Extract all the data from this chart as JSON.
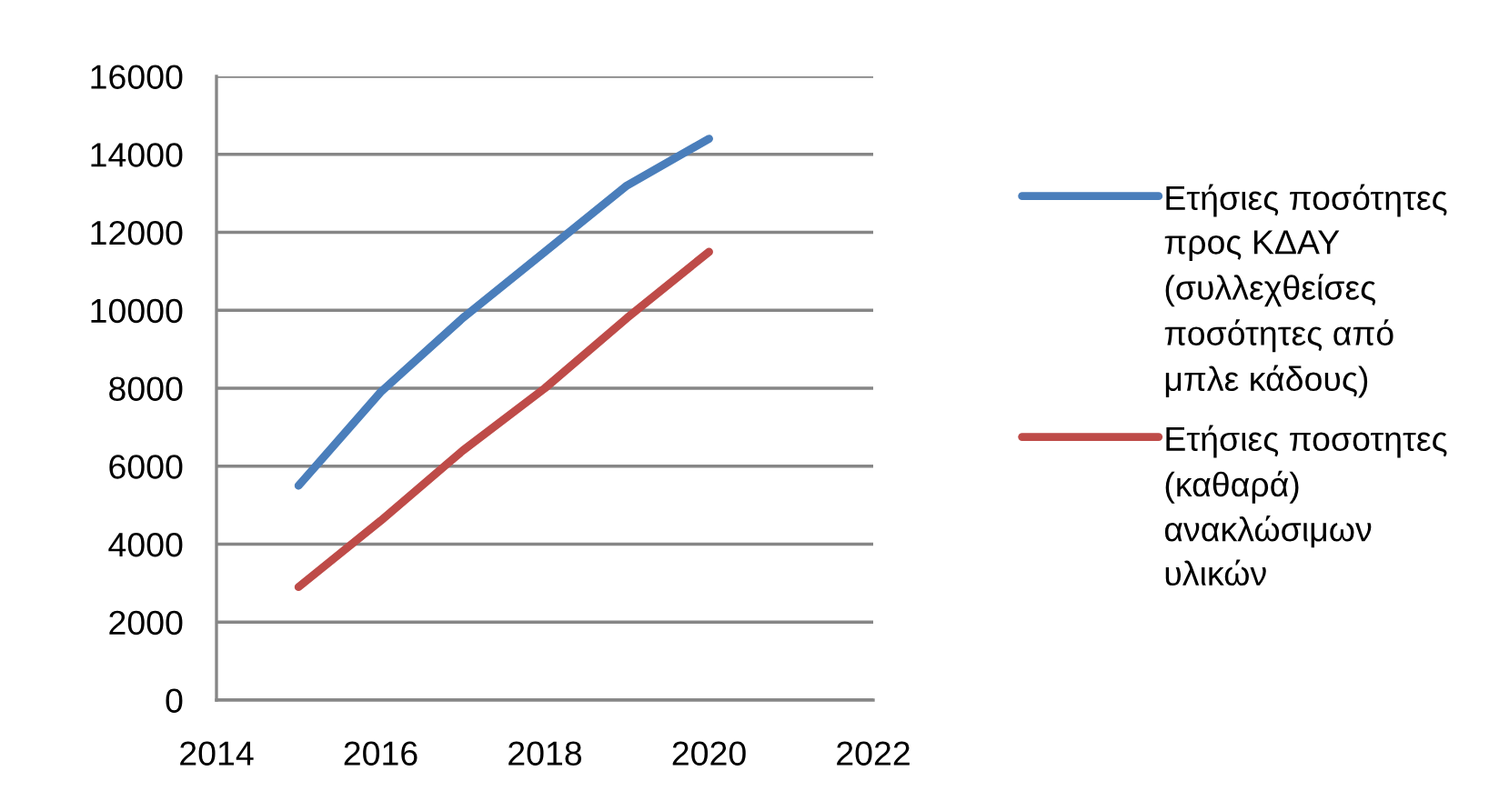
{
  "chart_data": {
    "type": "line",
    "x": [
      2015,
      2016,
      2017,
      2018,
      2019,
      2020
    ],
    "series": [
      {
        "name": "Ετήσιες ποσότητες\nπρος ΚΔΑΥ\n(συλλεχθείσες\nποσότητες από\nμπλε κάδους)",
        "color": "#4a7ebb",
        "values": [
          5500,
          7900,
          9800,
          11500,
          13200,
          14400
        ]
      },
      {
        "name": "Ετήσιες ποσοτητες\n(καθαρά)\nανακλώσιμων\nυλικών",
        "color": "#be4b48",
        "values": [
          2900,
          4600,
          6400,
          8000,
          9800,
          11500
        ]
      }
    ],
    "xlim": [
      2014,
      2022
    ],
    "xticks": [
      2014,
      2016,
      2018,
      2020,
      2022
    ],
    "ylim": [
      0,
      16000
    ],
    "yticks": [
      0,
      2000,
      4000,
      6000,
      8000,
      10000,
      12000,
      14000,
      16000
    ],
    "grid": "y",
    "legend": "right",
    "marker": "none",
    "line_style": "solid"
  }
}
